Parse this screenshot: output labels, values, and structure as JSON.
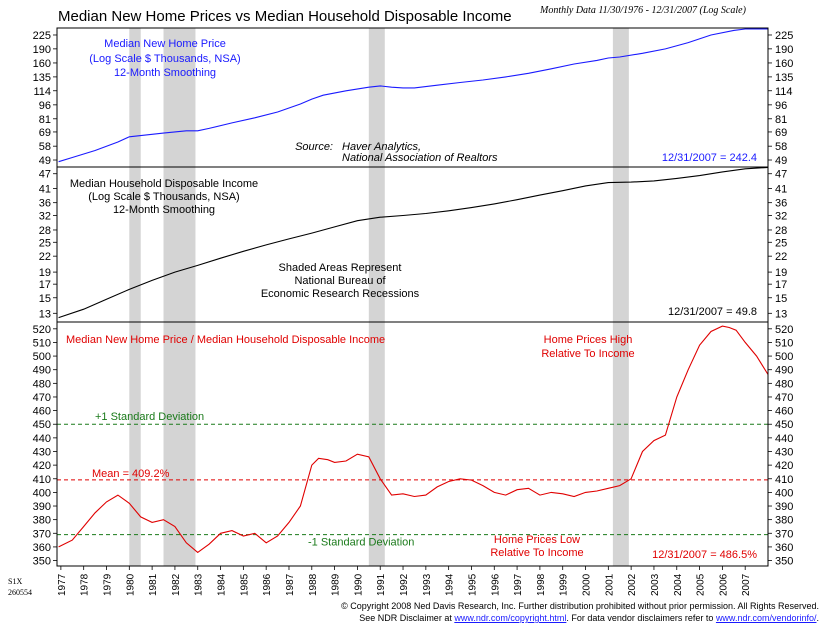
{
  "title": "Median New Home Prices vs Median Household Disposable Income",
  "subtitle": "Monthly Data 11/30/1976 - 12/31/2007 (Log Scale)",
  "code": [
    "S1X",
    "260554"
  ],
  "footer": {
    "line1": "© Copyright 2008 Ned Davis Research, Inc.  Further distribution prohibited without prior permission.  All Rights Reserved.",
    "line2_a": "See NDR Disclaimer at ",
    "line2_link1": "www.ndr.com/copyright.html",
    "line2_b": ".  For data vendor disclaimers refer to ",
    "line2_link2": "www.ndr.com/vendorinfo/",
    "line2_c": "."
  },
  "colors": {
    "price": "#1a1aff",
    "income": "#000000",
    "ratio": "#e00000",
    "stdev": "#1a7a1a",
    "mean": "#e00000",
    "recession": "#d4d4d4"
  },
  "chart_data": [
    {
      "type": "line",
      "scale": "log",
      "title": "Median New Home Price",
      "annotation": [
        "Median New Home Price",
        "(Log Scale $ Thousands, NSA)",
        "12-Month Smoothing"
      ],
      "source": [
        "Source:",
        "Haver Analytics,",
        "National Association of Realtors"
      ],
      "last_value_label": "12/31/2007 = 242.4",
      "yticks": [
        49,
        58,
        69,
        81,
        96,
        114,
        135,
        160,
        190,
        225
      ],
      "ylim": [
        45,
        245
      ],
      "series": [
        {
          "name": "Median New Home Price",
          "x": [
            1976.9,
            1977.5,
            1978.5,
            1979.5,
            1980.0,
            1980.5,
            1981.5,
            1982.5,
            1983.0,
            1983.5,
            1984.5,
            1985.5,
            1986.5,
            1987.5,
            1988.0,
            1988.5,
            1989.5,
            1990.5,
            1991.0,
            1991.5,
            1992.0,
            1992.5,
            1993.5,
            1994.5,
            1995.5,
            1996.5,
            1997.5,
            1998.5,
            1999.5,
            2000.5,
            2001.0,
            2001.5,
            2002.5,
            2003.5,
            2004.5,
            2005.5,
            2006.5,
            2007.0,
            2007.5,
            2008.0
          ],
          "values": [
            48,
            50.5,
            55,
            61,
            65,
            66,
            68,
            70,
            70,
            72,
            77,
            82,
            88,
            97,
            103,
            108,
            114,
            119,
            121,
            119,
            118,
            118,
            122,
            126,
            130,
            135,
            141,
            149,
            158,
            165,
            170,
            172,
            180,
            190,
            205,
            225,
            238,
            242,
            242,
            242.4
          ]
        }
      ]
    },
    {
      "type": "line",
      "scale": "log",
      "title": "Median Household Disposable Income",
      "annotation": [
        "Median Household Disposable Income",
        "(Log Scale $ Thousands, NSA)",
        "12-Month Smoothing"
      ],
      "recession_note": [
        "Shaded Areas Represent",
        "National Bureau of",
        "Economic Research Recessions"
      ],
      "last_value_label": "12/31/2007 = 49.8",
      "yticks": [
        13,
        15,
        17,
        19,
        22,
        25,
        28,
        32,
        36,
        41,
        47
      ],
      "ylim": [
        12,
        50
      ],
      "series": [
        {
          "name": "Median Household Disposable Income",
          "x": [
            1976.9,
            1978,
            1979,
            1980,
            1981,
            1982,
            1983,
            1984,
            1985,
            1986,
            1987,
            1988,
            1989,
            1990,
            1991,
            1992,
            1993,
            1994,
            1995,
            1996,
            1997,
            1998,
            1999,
            2000,
            2001,
            2002,
            2003,
            2004,
            2005,
            2006,
            2007,
            2008
          ],
          "values": [
            12.5,
            13.5,
            14.8,
            16.2,
            17.6,
            19.0,
            20.2,
            21.6,
            23.0,
            24.4,
            25.8,
            27.2,
            28.8,
            30.5,
            31.5,
            32.0,
            32.6,
            33.4,
            34.4,
            35.6,
            37.0,
            38.6,
            40.2,
            42.0,
            43.3,
            43.5,
            44.0,
            45.0,
            46.2,
            47.8,
            49.2,
            49.8
          ]
        }
      ]
    },
    {
      "type": "line",
      "title": "Median New Home Price / Median Household Disposable Income",
      "yticks": [
        350,
        360,
        370,
        380,
        390,
        400,
        410,
        420,
        430,
        440,
        450,
        460,
        470,
        480,
        490,
        500,
        510,
        520
      ],
      "ylim": [
        346,
        525
      ],
      "mean": {
        "label": "Mean = 409.2%",
        "value": 409.2
      },
      "plus1sd": {
        "label": "+1 Standard Deviation",
        "value": 450
      },
      "minus1sd": {
        "label": "-1 Standard Deviation",
        "value": 369
      },
      "notes": {
        "high": [
          "Home Prices High",
          "Relative To Income"
        ],
        "low": [
          "Home Prices Low",
          "Relative To Income"
        ]
      },
      "last_value_label": "12/31/2007 = 486.5%",
      "series": [
        {
          "name": "Median New Home Price / Median Household Disposable Income",
          "x": [
            1976.9,
            1977.5,
            1978,
            1978.5,
            1979,
            1979.5,
            1980,
            1980.5,
            1981,
            1981.5,
            1982,
            1982.5,
            1983,
            1983.5,
            1984,
            1984.5,
            1985,
            1985.5,
            1986,
            1986.5,
            1987,
            1987.5,
            1988,
            1988.3,
            1988.7,
            1989,
            1989.5,
            1990,
            1990.5,
            1991,
            1991.5,
            1992,
            1992.5,
            1993,
            1993.5,
            1994,
            1994.5,
            1995,
            1995.5,
            1996,
            1996.5,
            1997,
            1997.5,
            1998,
            1998.5,
            1999,
            1999.5,
            2000,
            2000.5,
            2001,
            2001.5,
            2002,
            2002.5,
            2003,
            2003.5,
            2004,
            2004.5,
            2005,
            2005.5,
            2006,
            2006.3,
            2006.6,
            2007,
            2007.5,
            2008
          ],
          "values": [
            360,
            365,
            375,
            385,
            393,
            398,
            392,
            382,
            378,
            380,
            375,
            363,
            356,
            362,
            370,
            372,
            368,
            370,
            363,
            368,
            378,
            390,
            420,
            425,
            424,
            422,
            423,
            428,
            426,
            410,
            398,
            399,
            397,
            398,
            404,
            408,
            410,
            409,
            405,
            400,
            398,
            402,
            403,
            398,
            400,
            399,
            397,
            400,
            401,
            403,
            405,
            410,
            430,
            438,
            442,
            470,
            490,
            508,
            518,
            522,
            521,
            519,
            510,
            500,
            486.5
          ]
        }
      ]
    }
  ],
  "recessions": [
    [
      1980.0,
      1980.5
    ],
    [
      1981.5,
      1982.9
    ],
    [
      1990.5,
      1991.2
    ],
    [
      2001.2,
      2001.9
    ]
  ],
  "x_axis": {
    "labels": [
      "1977",
      "1978",
      "1979",
      "1980",
      "1981",
      "1982",
      "1983",
      "1984",
      "1985",
      "1986",
      "1987",
      "1988",
      "1989",
      "1990",
      "1991",
      "1992",
      "1993",
      "1994",
      "1995",
      "1996",
      "1997",
      "1998",
      "1999",
      "2000",
      "2001",
      "2002",
      "2003",
      "2004",
      "2005",
      "2006",
      "2007"
    ],
    "xlim": [
      1976.83,
      2008.0
    ]
  }
}
